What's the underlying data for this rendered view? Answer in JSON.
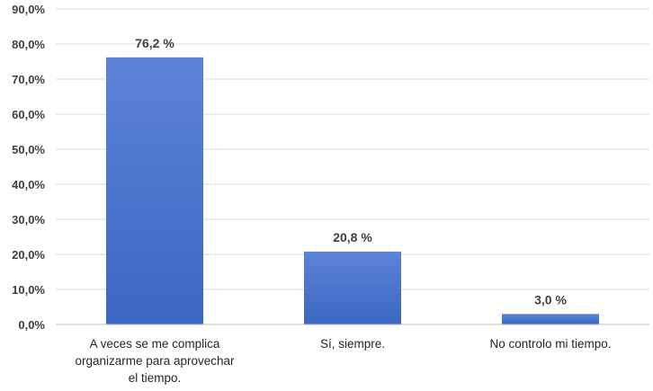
{
  "chart_data": {
    "type": "bar",
    "categories": [
      [
        "A veces se me complica",
        "organizarme para  aprovechar",
        "el tiempo."
      ],
      [
        "Sí, siempre."
      ],
      [
        "No controlo mi tiempo."
      ]
    ],
    "values": [
      76.2,
      20.8,
      3.0
    ],
    "data_labels": [
      "76,2 %",
      "20,8 %",
      "3,0 %"
    ],
    "y_ticks": [
      0,
      10,
      20,
      30,
      40,
      50,
      60,
      70,
      80,
      90
    ],
    "y_tick_labels": [
      "0,0%",
      "10,0%",
      "20,0%",
      "30,0%",
      "40,0%",
      "50,0%",
      "60,0%",
      "70,0%",
      "80,0%",
      "90,0%"
    ],
    "ylim": [
      0,
      90
    ],
    "grid": true,
    "title": "",
    "xlabel": "",
    "ylabel": "",
    "bar_color": "#3b66c2",
    "bar_color_light": "#5b84d8"
  }
}
